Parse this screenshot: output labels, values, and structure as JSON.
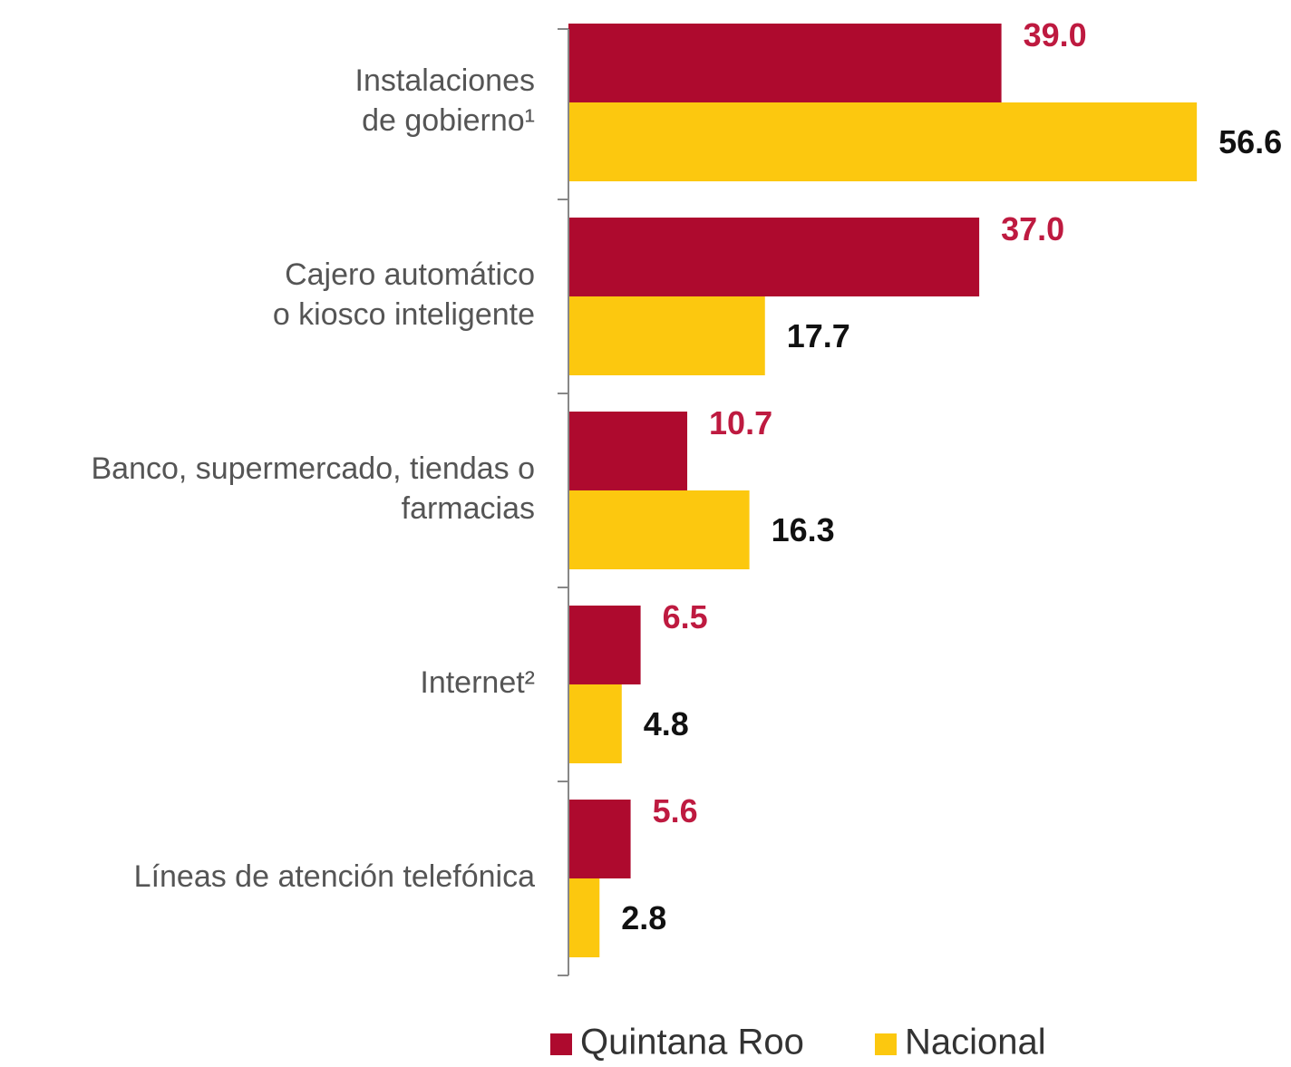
{
  "chart_data": {
    "type": "hbar",
    "categories": [
      [
        "Instalaciones",
        "de gobierno¹"
      ],
      [
        "Cajero automático",
        "o kiosco inteligente"
      ],
      [
        "Banco, supermercado, tiendas o",
        "farmacias"
      ],
      [
        "Internet²"
      ],
      [
        "Líneas de atención telefónica"
      ]
    ],
    "series": [
      {
        "name": "Quintana Roo",
        "color": "#ae0a2e",
        "label_color": "#be1a40",
        "values": [
          39.0,
          37.0,
          10.7,
          6.5,
          5.6
        ],
        "value_labels": [
          "39.0",
          "37.0",
          "10.7",
          "6.5",
          "5.6"
        ]
      },
      {
        "name": "Nacional",
        "color": "#fcc80f",
        "label_color": "#111111",
        "values": [
          56.6,
          17.7,
          16.3,
          4.8,
          2.8
        ],
        "value_labels": [
          "56.6",
          "17.7",
          "16.3",
          "4.8",
          "2.8"
        ]
      }
    ],
    "xlim": [
      0,
      65
    ]
  }
}
